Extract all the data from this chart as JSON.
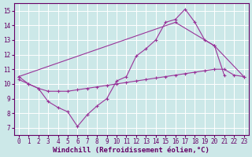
{
  "xlabel": "Windchill (Refroidissement éolien,°C)",
  "background_color": "#cce8e8",
  "grid_color": "#ffffff",
  "line_color": "#993399",
  "xlim": [
    -0.5,
    23.5
  ],
  "ylim": [
    6.5,
    15.5
  ],
  "yticks": [
    7,
    8,
    9,
    10,
    11,
    12,
    13,
    14,
    15
  ],
  "xticks": [
    0,
    1,
    2,
    3,
    4,
    5,
    6,
    7,
    8,
    9,
    10,
    11,
    12,
    13,
    14,
    15,
    16,
    17,
    18,
    19,
    20,
    21,
    22,
    23
  ],
  "series1_x": [
    0,
    1,
    2,
    3,
    4,
    5,
    6,
    7,
    8,
    9,
    10,
    11,
    12,
    13,
    14,
    15,
    16,
    17,
    18,
    19,
    20,
    21
  ],
  "series1_y": [
    10.5,
    10.0,
    9.7,
    8.8,
    8.4,
    8.1,
    7.1,
    7.9,
    8.5,
    9.0,
    10.2,
    10.5,
    11.9,
    12.4,
    13.0,
    14.2,
    14.4,
    15.1,
    14.2,
    13.0,
    12.6,
    10.6
  ],
  "series2_x": [
    0,
    1,
    2,
    3,
    4,
    5,
    6,
    7,
    8,
    9,
    10,
    11,
    12,
    13,
    14,
    15,
    16,
    17,
    18,
    19,
    20,
    21,
    22,
    23
  ],
  "series2_y": [
    10.3,
    10.0,
    9.7,
    9.5,
    9.5,
    9.5,
    9.6,
    9.7,
    9.8,
    9.9,
    10.0,
    10.1,
    10.2,
    10.3,
    10.4,
    10.5,
    10.6,
    10.7,
    10.8,
    10.9,
    11.0,
    11.0,
    10.6,
    10.5
  ],
  "series3_x": [
    0,
    16,
    20,
    23
  ],
  "series3_y": [
    10.5,
    14.2,
    12.6,
    10.5
  ],
  "font_size_ticks": 5.5,
  "font_size_xlabel": 6.5,
  "tick_color": "#660066",
  "spine_color": "#660066"
}
